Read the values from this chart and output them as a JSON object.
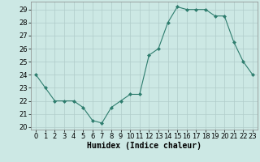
{
  "x": [
    0,
    1,
    2,
    3,
    4,
    5,
    6,
    7,
    8,
    9,
    10,
    11,
    12,
    13,
    14,
    15,
    16,
    17,
    18,
    19,
    20,
    21,
    22,
    23
  ],
  "y": [
    24.0,
    23.0,
    22.0,
    22.0,
    22.0,
    21.5,
    20.5,
    20.3,
    21.5,
    22.0,
    22.5,
    22.5,
    25.5,
    26.0,
    28.0,
    29.2,
    29.0,
    29.0,
    29.0,
    28.5,
    28.5,
    26.5,
    25.0,
    24.0
  ],
  "xlabel": "Humidex (Indice chaleur)",
  "ylim_min": 19.8,
  "ylim_max": 29.6,
  "yticks": [
    20,
    21,
    22,
    23,
    24,
    25,
    26,
    27,
    28,
    29
  ],
  "xticks": [
    0,
    1,
    2,
    3,
    4,
    5,
    6,
    7,
    8,
    9,
    10,
    11,
    12,
    13,
    14,
    15,
    16,
    17,
    18,
    19,
    20,
    21,
    22,
    23
  ],
  "line_color": "#2e7d6e",
  "marker": "D",
  "marker_size": 2.0,
  "bg_color": "#cce8e4",
  "grid_color": "#b0ccc9",
  "xlabel_fontsize": 7,
  "tick_fontsize": 6,
  "line_width": 0.8
}
